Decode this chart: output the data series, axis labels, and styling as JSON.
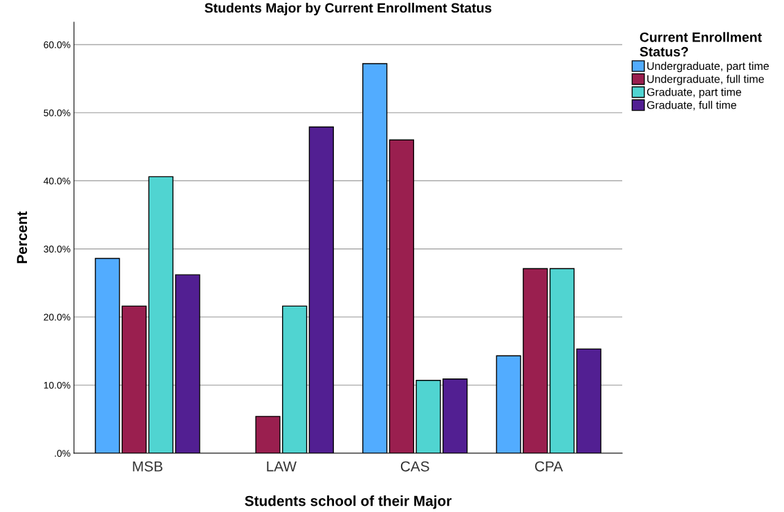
{
  "chart_data": {
    "type": "bar",
    "title": "Students Major by Current Enrollment Status",
    "xlabel": "Students school of their Major",
    "ylabel": "Percent",
    "legend_title": "Current Enrollment\nStatus?",
    "categories": [
      "MSB",
      "LAW",
      "CAS",
      "CPA"
    ],
    "series": [
      {
        "name": "Undergraduate, part time",
        "color": "#52acff",
        "values": [
          28.6,
          null,
          57.2,
          14.3
        ]
      },
      {
        "name": "Undergraduate, full time",
        "color": "#9a1f4f",
        "values": [
          21.6,
          5.4,
          46.0,
          27.1
        ]
      },
      {
        "name": "Graduate, part time",
        "color": "#50d4d1",
        "values": [
          40.6,
          21.6,
          10.7,
          27.1
        ]
      },
      {
        "name": "Graduate, full time",
        "color": "#521f92",
        "values": [
          26.2,
          47.9,
          10.9,
          15.3
        ]
      }
    ],
    "ylim": [
      0,
      63.3
    ],
    "yticks": [
      {
        "value": 0,
        "label": ".0%"
      },
      {
        "value": 10,
        "label": "10.0%"
      },
      {
        "value": 20,
        "label": "20.0%"
      },
      {
        "value": 30,
        "label": "30.0%"
      },
      {
        "value": 40,
        "label": "40.0%"
      },
      {
        "value": 50,
        "label": "50.0%"
      },
      {
        "value": 60,
        "label": "60.0%"
      }
    ],
    "grid": "y",
    "legend": "top right"
  }
}
